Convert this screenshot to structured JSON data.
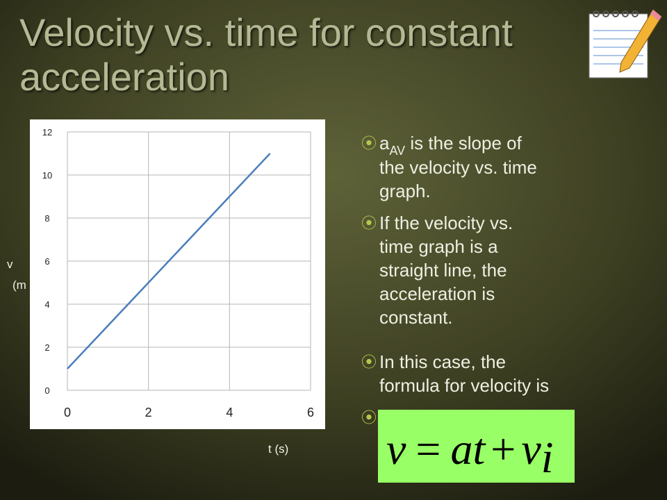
{
  "slide": {
    "title_lines": [
      "Velocity vs. time for constant",
      "acceleration"
    ],
    "bullets": [
      {
        "lines": [
          [
            "a",
            "AV",
            " is the slope of"
          ],
          "the velocity vs. time",
          "graph."
        ]
      },
      {
        "lines": [
          "If the velocity vs.",
          "time graph is a",
          "straight line, the",
          "acceleration is",
          "constant."
        ]
      },
      {
        "lines": [
          "In this case, the",
          "formula for velocity is"
        ]
      }
    ],
    "formula": [
      "v",
      "=",
      "at",
      "+",
      "v",
      "i"
    ]
  },
  "chart_data": {
    "type": "line",
    "ylabel_lines": [
      "v",
      "(m"
    ],
    "xlabel": "t (s)",
    "x": [
      0,
      5
    ],
    "series": [
      {
        "color": "#4a7ebb",
        "values": [
          1,
          11
        ]
      }
    ],
    "xlim": [
      0,
      6
    ],
    "xticks": [
      0,
      2,
      4,
      6
    ],
    "ylim": [
      0,
      12
    ],
    "yticks": [
      0,
      2,
      4,
      6,
      8,
      10,
      12
    ],
    "grid": true
  }
}
